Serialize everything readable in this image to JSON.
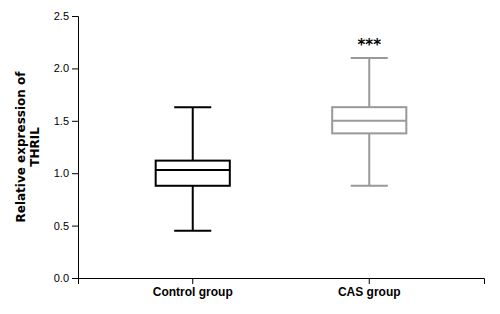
{
  "chart_data": {
    "type": "box",
    "categories": [
      "Control group",
      "CAS group"
    ],
    "whisker_low": [
      0.45,
      0.88
    ],
    "q1": [
      0.88,
      1.38
    ],
    "median": [
      1.03,
      1.5
    ],
    "q3": [
      1.12,
      1.63
    ],
    "whisker_high": [
      1.63,
      2.1
    ],
    "colors": [
      "#000000",
      "#999999"
    ],
    "ylabel": "Relative expression of\nTHRIL",
    "ylim": [
      0.0,
      2.5
    ],
    "yticks": [
      {
        "value": 0,
        "label": "0.0"
      },
      0.5,
      {
        "value": 1,
        "label": "1.0"
      },
      1.5,
      {
        "value": 2,
        "label": "2.0"
      },
      2.5
    ],
    "annotations": [
      {
        "text": "***",
        "category": "CAS group",
        "y": 2.18
      }
    ]
  }
}
